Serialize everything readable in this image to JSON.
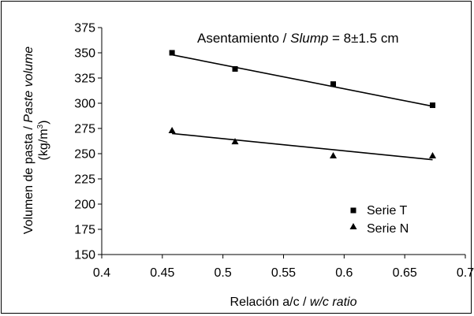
{
  "chart_data": {
    "type": "scatter",
    "title": "",
    "annotation": {
      "prefix": "Asentamiento / ",
      "italic": "Slump",
      "suffix": " = 8±1.5 cm"
    },
    "xlabel": {
      "plain": "Relación a/c / ",
      "italic": "w/c ratio"
    },
    "ylabel": {
      "line1_plain": "Volumen de pasta / ",
      "line1_italic": "Paste volume",
      "line2": "(kg/m",
      "line2_sup": "3",
      "line2_end": ")"
    },
    "xlim": [
      0.4,
      0.7
    ],
    "ylim": [
      150,
      375
    ],
    "xticks": [
      "0.4",
      "0.45",
      "0.5",
      "0.55",
      "0.6",
      "0.65",
      "0.7"
    ],
    "xtick_values": [
      0.4,
      0.45,
      0.5,
      0.55,
      0.6,
      0.65,
      0.7
    ],
    "yticks": [
      "375",
      "350",
      "325",
      "300",
      "275",
      "250",
      "225",
      "200",
      "175",
      "150"
    ],
    "ytick_positions": [
      375,
      350,
      325,
      300,
      275,
      250,
      225,
      200,
      175,
      150
    ],
    "grid": false,
    "legend_position": "bottom-right",
    "series": [
      {
        "name": "Serie T",
        "marker": "square",
        "color": "#000000",
        "x": [
          0.458,
          0.51,
          0.591,
          0.673
        ],
        "y": [
          350,
          334,
          319,
          298
        ],
        "trend": {
          "x": [
            0.458,
            0.673
          ],
          "y": [
            348,
            297
          ]
        }
      },
      {
        "name": "Serie N",
        "marker": "triangle",
        "color": "#000000",
        "x": [
          0.458,
          0.51,
          0.591,
          0.673
        ],
        "y": [
          273,
          262,
          248,
          248
        ],
        "trend": {
          "x": [
            0.458,
            0.673
          ],
          "y": [
            270,
            244
          ]
        }
      }
    ]
  }
}
